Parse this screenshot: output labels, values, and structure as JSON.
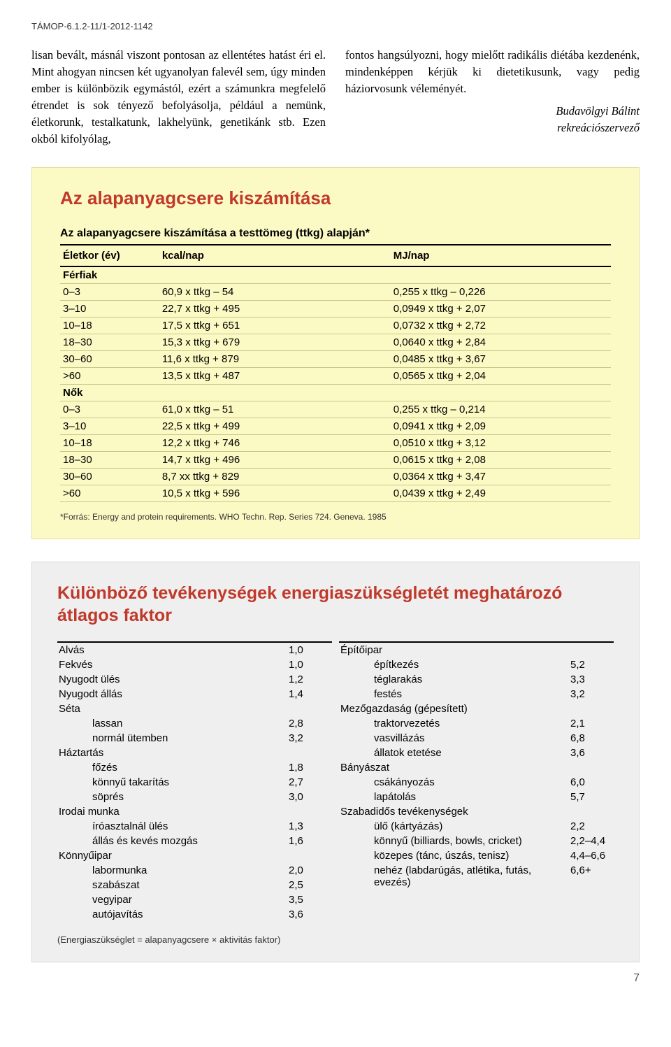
{
  "header_code": "TÁMOP-6.1.2-11/1-2012-1142",
  "left_paragraph": "lisan bevált, másnál viszont pontosan az ellentétes hatást éri el. Mint ahogyan nincsen két ugyanolyan falevél sem, úgy minden ember is különbözik egymástól, ezért a számunkra megfelelő étrendet is sok tényező befolyásolja, például a nemünk, életkorunk, testalkatunk, lakhelyünk, genetikánk stb. Ezen okból kifolyólag,",
  "right_paragraph": "fontos hangsúlyozni, hogy mielőtt radikális diétába kezdenénk, mindenképpen kérjük ki dietetikusunk, vagy pedig háziorvosunk véleményét.",
  "signature_name": "Budavölgyi Bálint",
  "signature_role": "rekreációszervező",
  "panel1": {
    "title": "Az alapanyagcsere kiszámítása",
    "subtitle": "Az alapanyagcsere kiszámítása a testtömeg (ttkg) alapján*",
    "columns": [
      "Életkor (év)",
      "kcal/nap",
      "MJ/nap"
    ],
    "groups": [
      {
        "label": "Férfiak",
        "rows": [
          [
            "0–3",
            "60,9 x ttkg –  54",
            "0,255 x ttkg – 0,226"
          ],
          [
            "3–10",
            "22,7 x ttkg + 495",
            "0,0949 x ttkg + 2,07"
          ],
          [
            "10–18",
            "17,5 x ttkg + 651",
            "0,0732 x ttkg + 2,72"
          ],
          [
            "18–30",
            "15,3 x ttkg + 679",
            "0,0640 x ttkg + 2,84"
          ],
          [
            "30–60",
            "11,6 x ttkg + 879",
            "0,0485 x ttkg + 3,67"
          ],
          [
            ">60",
            "13,5 x ttkg + 487",
            "0,0565 x ttkg + 2,04"
          ]
        ]
      },
      {
        "label": "Nők",
        "rows": [
          [
            "0–3",
            "61,0 x ttkg –  51",
            "0,255 x ttkg – 0,214"
          ],
          [
            "3–10",
            "22,5 x ttkg + 499",
            "0,0941 x ttkg + 2,09"
          ],
          [
            "10–18",
            "12,2 x ttkg + 746",
            "0,0510 x ttkg + 3,12"
          ],
          [
            "18–30",
            "14,7 x ttkg + 496",
            "0,0615 x ttkg + 2,08"
          ],
          [
            "30–60",
            "8,7 xx ttkg + 829",
            "0,0364 x ttkg + 3,47"
          ],
          [
            ">60",
            "10,5 x ttkg + 596",
            "0,0439 x ttkg + 2,49"
          ]
        ]
      }
    ],
    "footnote": "*Forrás: Energy and protein requirements. WHO Techn. Rep. Series 724. Geneva. 1985"
  },
  "panel2": {
    "title": "Különböző tevékenységek energiaszükségletét meghatározó átlagos faktor",
    "left": [
      {
        "cat": "Alvás",
        "val": "1,0"
      },
      {
        "cat": "Fekvés",
        "val": "1,0"
      },
      {
        "cat": "Nyugodt ülés",
        "val": "1,2"
      },
      {
        "cat": "Nyugodt állás",
        "val": "1,4"
      },
      {
        "cat": "Séta"
      },
      {
        "sub": "lassan",
        "val": "2,8"
      },
      {
        "sub": "normál ütemben",
        "val": "3,2"
      },
      {
        "cat": "Háztartás"
      },
      {
        "sub": "főzés",
        "val": "1,8"
      },
      {
        "sub": "könnyű takarítás",
        "val": "2,7"
      },
      {
        "sub": "söprés",
        "val": "3,0"
      },
      {
        "cat": "Irodai munka"
      },
      {
        "sub": "íróasztalnál ülés",
        "val": "1,3"
      },
      {
        "sub": "állás és kevés mozgás",
        "val": "1,6"
      },
      {
        "cat": "Könnyűipar"
      },
      {
        "sub": "labormunka",
        "val": "2,0"
      },
      {
        "sub": "szabászat",
        "val": "2,5"
      },
      {
        "sub": "vegyipar",
        "val": "3,5"
      },
      {
        "sub": "autójavítás",
        "val": "3,6"
      }
    ],
    "right": [
      {
        "cat": "Építőipar"
      },
      {
        "sub": "építkezés",
        "val": "5,2"
      },
      {
        "sub": "téglarakás",
        "val": "3,3"
      },
      {
        "sub": "festés",
        "val": "3,2"
      },
      {
        "cat": "Mezőgazdaság (gépesített)"
      },
      {
        "sub": "traktorvezetés",
        "val": "2,1"
      },
      {
        "sub": "vasvillázás",
        "val": "6,8"
      },
      {
        "sub": "állatok etetése",
        "val": "3,6"
      },
      {
        "cat": "Bányászat"
      },
      {
        "sub": "csákányozás",
        "val": "6,0"
      },
      {
        "sub": "lapátolás",
        "val": "5,7"
      },
      {
        "cat": "Szabadidős tevékenységek"
      },
      {
        "sub": "ülő (kártyázás)",
        "val": "2,2"
      },
      {
        "sub": "könnyű (billiards, bowls, cricket)",
        "val": "2,2–4,4"
      },
      {
        "sub": "közepes (tánc, úszás, tenisz)",
        "val": "4,4–6,6"
      },
      {
        "sub": "nehéz (labdarúgás, atlétika, futás, evezés)",
        "val": "6,6+"
      }
    ],
    "footnote": "(Energiaszükséglet = alapanyagcsere × aktivitás faktor)"
  },
  "page_number": "7",
  "colors": {
    "panel1_bg": "#fcfac4",
    "panel2_bg": "#efefef",
    "title_red": "#c0392b"
  }
}
